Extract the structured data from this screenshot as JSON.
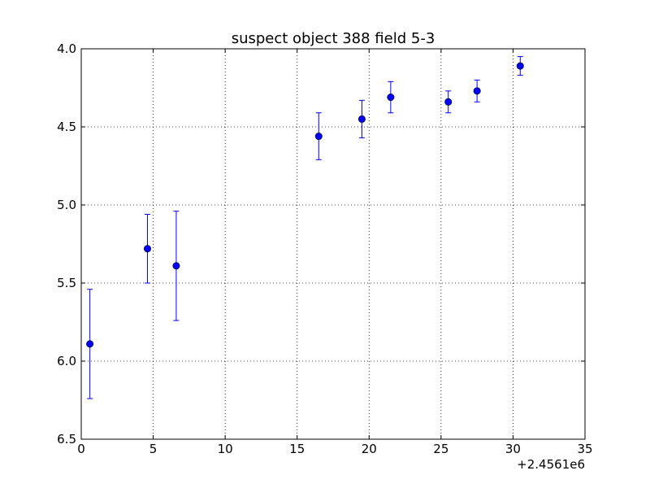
{
  "chart_data": {
    "type": "scatter",
    "title": "suspect object 388 field 5-3",
    "xlabel": "",
    "ylabel": "",
    "x_offset_label": "+2.4561e6",
    "xlim": [
      0,
      35
    ],
    "ylim": [
      6.5,
      4.0
    ],
    "y_inverted": true,
    "grid": true,
    "x_ticks": [
      0,
      5,
      10,
      15,
      20,
      25,
      30,
      35
    ],
    "x_tick_labels": [
      "0",
      "5",
      "10",
      "15",
      "20",
      "25",
      "30",
      "35"
    ],
    "y_ticks": [
      4.0,
      4.5,
      5.0,
      5.5,
      6.0,
      6.5
    ],
    "y_tick_labels": [
      "4.0",
      "4.5",
      "5.0",
      "5.5",
      "6.0",
      "6.5"
    ],
    "series": [
      {
        "color": "#0000ff",
        "marker": "circle",
        "points": [
          {
            "x": 0.6,
            "y": 5.89,
            "err": 0.35
          },
          {
            "x": 4.6,
            "y": 5.28,
            "err": 0.22
          },
          {
            "x": 6.6,
            "y": 5.39,
            "err": 0.35
          },
          {
            "x": 16.5,
            "y": 4.56,
            "err": 0.15
          },
          {
            "x": 19.5,
            "y": 4.45,
            "err": 0.12
          },
          {
            "x": 21.5,
            "y": 4.31,
            "err": 0.1
          },
          {
            "x": 25.5,
            "y": 4.34,
            "err": 0.07
          },
          {
            "x": 27.5,
            "y": 4.27,
            "err": 0.07
          },
          {
            "x": 30.5,
            "y": 4.11,
            "err": 0.06
          }
        ]
      }
    ]
  }
}
